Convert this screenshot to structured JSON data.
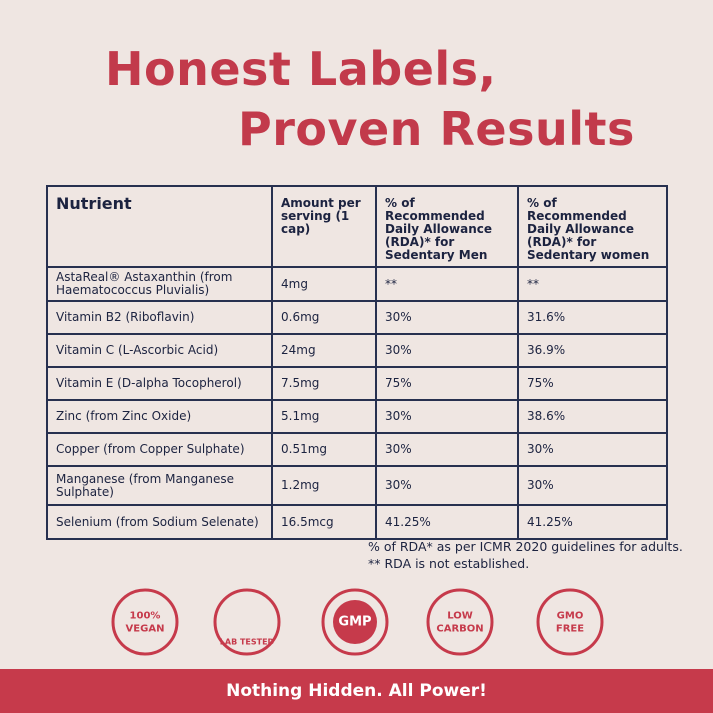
{
  "header": {
    "title_lines": [
      "Honest Labels,",
      "Proven Results"
    ]
  },
  "table": {
    "columns": [
      "Nutrient",
      "Amount per serving (1 cap)",
      "% of Recommended Daily Allowance (RDA)* for Sedentary Men",
      "% of Recommended Daily Allowance (RDA)* for Sedentary women"
    ],
    "rows": [
      [
        "AstaReal® Astaxanthin (from Haematococcus Pluvialis)",
        "4mg",
        "**",
        "**"
      ],
      [
        "Vitamin B2 (Riboflavin)",
        "0.6mg",
        "30%",
        "31.6%"
      ],
      [
        "Vitamin C (L-Ascorbic Acid)",
        "24mg",
        "30%",
        "36.9%"
      ],
      [
        "Vitamin E (D-alpha Tocopherol)",
        "7.5mg",
        "75%",
        "75%"
      ],
      [
        "Zinc (from Zinc Oxide)",
        "5.1mg",
        "30%",
        "38.6%"
      ],
      [
        "Copper (from Copper Sulphate)",
        "0.51mg",
        "30%",
        "30%"
      ],
      [
        "Manganese (from Manganese Sulphate)",
        "1.2mg",
        "30%",
        "30%"
      ],
      [
        "Selenium (from Sodium Selenate)",
        "16.5mcg",
        "41.25%",
        "41.25%"
      ]
    ]
  },
  "footnotes": [
    "% of RDA* as per ICMR 2020 guidelines for adults.",
    "** RDA is not established."
  ],
  "badges": [
    {
      "lines": [
        "100%",
        "VEGAN"
      ]
    },
    {
      "lines": [
        "LAB TESTED"
      ]
    },
    {
      "lines": [
        "GMP"
      ]
    },
    {
      "lines": [
        "LOW",
        "CARBON"
      ]
    },
    {
      "lines": [
        "GMO",
        "FREE"
      ]
    }
  ],
  "footer": {
    "text": "Nothing Hidden. All Power!"
  }
}
